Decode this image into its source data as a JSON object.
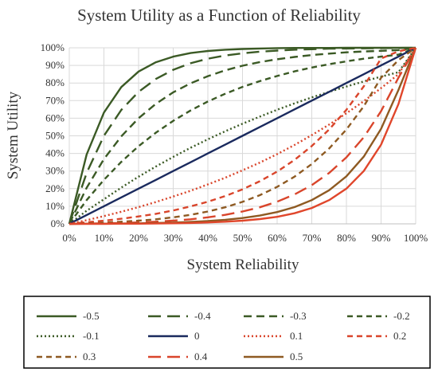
{
  "chart_data": {
    "type": "line",
    "title": "System Utility as a Function of Reliability",
    "xlabel": "System Reliability",
    "ylabel": "System Utility",
    "xlim": [
      0,
      1
    ],
    "ylim": [
      0,
      1
    ],
    "x_ticks": [
      "0%",
      "10%",
      "20%",
      "30%",
      "40%",
      "50%",
      "60%",
      "70%",
      "80%",
      "90%",
      "100%"
    ],
    "y_ticks": [
      "0%",
      "10%",
      "20%",
      "30%",
      "40%",
      "50%",
      "60%",
      "70%",
      "80%",
      "90%",
      "100%"
    ],
    "grid": true,
    "legend_position": "bottom",
    "x": [
      0,
      0.05,
      0.1,
      0.15,
      0.2,
      0.25,
      0.3,
      0.35,
      0.4,
      0.45,
      0.5,
      0.55,
      0.6,
      0.65,
      0.7,
      0.75,
      0.8,
      0.85,
      0.9,
      0.95,
      1
    ],
    "series": [
      {
        "name": "-0.5",
        "color": "#3b5a25",
        "dash": "solid",
        "values": [
          0,
          0.394,
          0.632,
          0.777,
          0.865,
          0.918,
          0.95,
          0.97,
          0.982,
          0.989,
          0.993,
          0.996,
          0.998,
          0.999,
          0.999,
          0.999,
          1.0,
          1.0,
          1.0,
          1.0,
          1.0
        ]
      },
      {
        "name": "-0.4",
        "color": "#3b5a25",
        "dash": "long-dash",
        "values": [
          0,
          0.289,
          0.5,
          0.647,
          0.75,
          0.823,
          0.875,
          0.912,
          0.938,
          0.956,
          0.969,
          0.978,
          0.984,
          0.989,
          0.992,
          0.995,
          0.996,
          0.997,
          0.998,
          0.999,
          1.0
        ]
      },
      {
        "name": "-0.3",
        "color": "#3b5a25",
        "dash": "dash",
        "values": [
          0,
          0.205,
          0.368,
          0.497,
          0.6,
          0.682,
          0.747,
          0.798,
          0.839,
          0.872,
          0.898,
          0.919,
          0.935,
          0.948,
          0.959,
          0.967,
          0.974,
          0.979,
          0.983,
          0.987,
          1.0
        ]
      },
      {
        "name": "-0.2",
        "color": "#3b5a25",
        "dash": "short-dash",
        "values": [
          0,
          0.135,
          0.25,
          0.352,
          0.441,
          0.518,
          0.585,
          0.644,
          0.695,
          0.739,
          0.778,
          0.811,
          0.84,
          0.866,
          0.888,
          0.907,
          0.923,
          0.938,
          0.95,
          0.961,
          1.0
        ]
      },
      {
        "name": "-0.1",
        "color": "#3b5a25",
        "dash": "dot",
        "values": [
          0,
          0.074,
          0.14,
          0.206,
          0.268,
          0.326,
          0.38,
          0.432,
          0.48,
          0.526,
          0.569,
          0.609,
          0.648,
          0.684,
          0.718,
          0.75,
          0.78,
          0.809,
          0.836,
          0.861,
          1.0
        ]
      },
      {
        "name": "0",
        "color": "#1a2a5e",
        "dash": "solid",
        "values": [
          0,
          0.05,
          0.1,
          0.15,
          0.2,
          0.25,
          0.3,
          0.35,
          0.4,
          0.45,
          0.5,
          0.55,
          0.6,
          0.65,
          0.7,
          0.75,
          0.8,
          0.85,
          0.9,
          0.95,
          1.0
        ]
      },
      {
        "name": "0.1",
        "color": "#d9452b",
        "dash": "dot",
        "values": [
          0,
          0.021,
          0.044,
          0.069,
          0.095,
          0.124,
          0.155,
          0.188,
          0.224,
          0.262,
          0.304,
          0.348,
          0.396,
          0.448,
          0.504,
          0.564,
          0.628,
          0.697,
          0.771,
          0.85,
          1.0
        ]
      },
      {
        "name": "0.2",
        "color": "#d9452b",
        "dash": "short-dash",
        "values": [
          0,
          0.009,
          0.018,
          0.029,
          0.042,
          0.057,
          0.076,
          0.099,
          0.126,
          0.158,
          0.196,
          0.242,
          0.297,
          0.363,
          0.442,
          0.536,
          0.648,
          0.781,
          0.939,
          0.98,
          1.0
        ]
      },
      {
        "name": "0.3",
        "color": "#8e5a22",
        "dash": "short-dash",
        "values": [
          0,
          0.003,
          0.007,
          0.012,
          0.018,
          0.026,
          0.037,
          0.051,
          0.07,
          0.094,
          0.125,
          0.163,
          0.21,
          0.268,
          0.34,
          0.428,
          0.536,
          0.668,
          0.83,
          0.93,
          1.0
        ]
      },
      {
        "name": "0.4",
        "color": "#d9452b",
        "dash": "long-dash",
        "values": [
          0,
          0.001,
          0.003,
          0.005,
          0.008,
          0.012,
          0.018,
          0.026,
          0.037,
          0.051,
          0.07,
          0.094,
          0.126,
          0.167,
          0.22,
          0.289,
          0.378,
          0.492,
          0.64,
          0.83,
          1.0
        ]
      },
      {
        "name": "0.5",
        "color": "#8e5a22",
        "dash": "solid",
        "values": [
          0,
          0.001,
          0.001,
          0.002,
          0.003,
          0.005,
          0.007,
          0.011,
          0.016,
          0.023,
          0.033,
          0.047,
          0.067,
          0.095,
          0.135,
          0.191,
          0.27,
          0.382,
          0.54,
          0.76,
          1.0
        ]
      },
      {
        "name": "0.5",
        "color": "#e0462b",
        "dash": "solid",
        "legend": false,
        "values": [
          0,
          0.0,
          0.0,
          0.001,
          0.001,
          0.002,
          0.003,
          0.005,
          0.008,
          0.012,
          0.018,
          0.027,
          0.04,
          0.06,
          0.09,
          0.135,
          0.2,
          0.3,
          0.45,
          0.68,
          1.0
        ]
      }
    ]
  }
}
